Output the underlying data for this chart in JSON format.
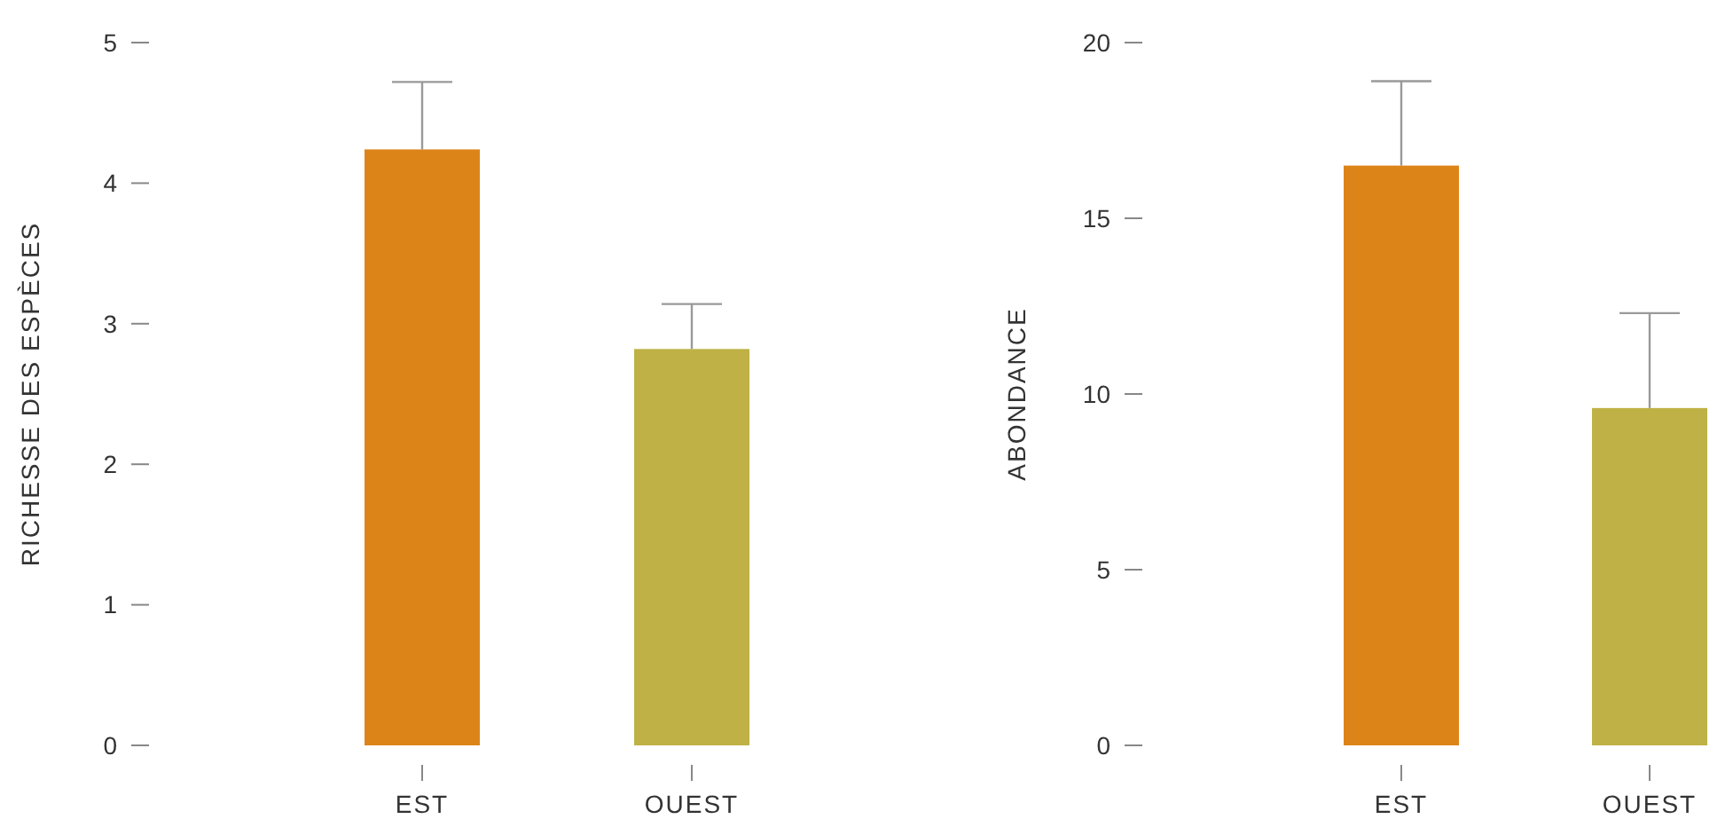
{
  "chart_data": [
    {
      "type": "bar",
      "ylabel": "RICHESSE DES ESPÈCES",
      "categories": [
        "EST",
        "OUEST"
      ],
      "values": [
        4.24,
        2.82
      ],
      "colors": [
        "#dd8419",
        "#bfb145"
      ],
      "errors": [
        [
          4.24,
          4.72
        ],
        [
          2.82,
          3.14
        ]
      ],
      "ylim": [
        0,
        5
      ],
      "yticks": [
        0,
        1,
        2,
        3,
        4,
        5
      ],
      "grid": false
    },
    {
      "type": "bar",
      "ylabel": "ABONDANCE",
      "categories": [
        "EST",
        "OUEST"
      ],
      "values": [
        16.5,
        9.6
      ],
      "colors": [
        "#dd8419",
        "#bfb145"
      ],
      "errors": [
        [
          16.5,
          18.9
        ],
        [
          9.6,
          12.3
        ]
      ],
      "ylim": [
        0,
        20
      ],
      "yticks": [
        0,
        5,
        10,
        15,
        20
      ],
      "grid": false
    }
  ]
}
